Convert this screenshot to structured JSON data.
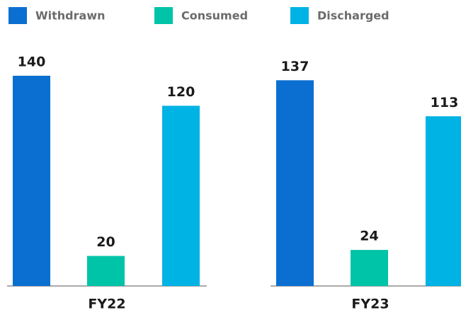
{
  "chart_data": {
    "type": "bar",
    "categories": [
      "FY22",
      "FY23"
    ],
    "series": [
      {
        "name": "Withdrawn",
        "color": "#0a6fd1",
        "values": [
          140,
          137
        ]
      },
      {
        "name": "Consumed",
        "color": "#00c4a8",
        "values": [
          20,
          24
        ]
      },
      {
        "name": "Discharged",
        "color": "#00b3e5",
        "values": [
          120,
          113
        ]
      }
    ]
  }
}
